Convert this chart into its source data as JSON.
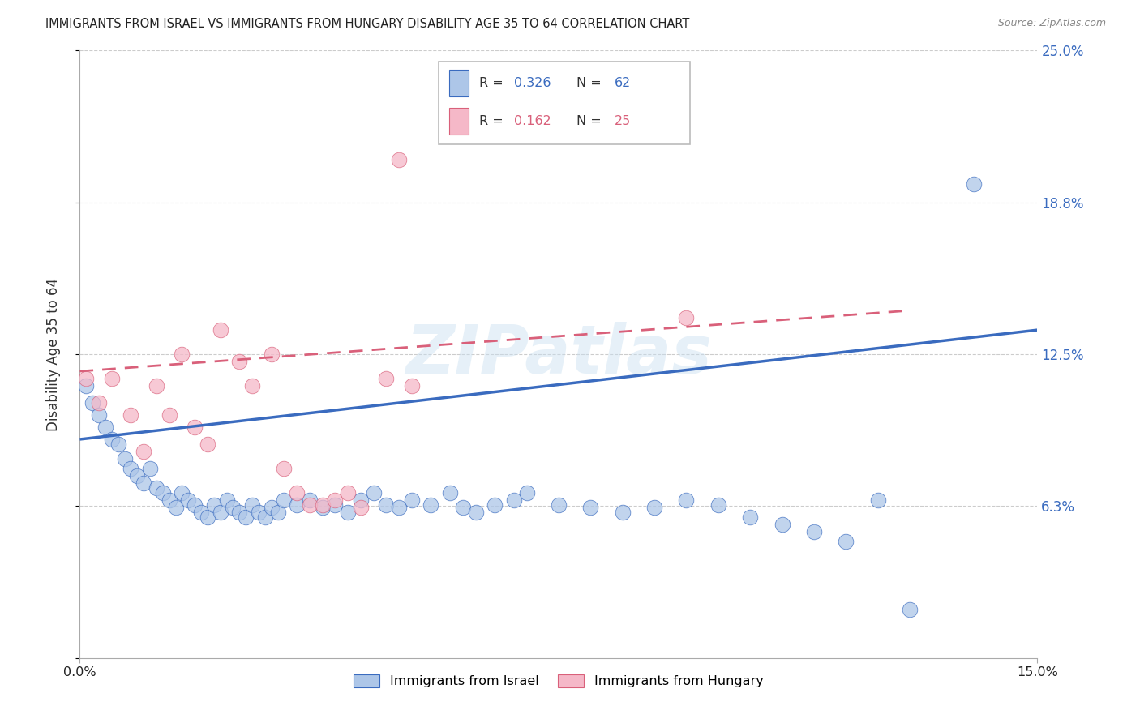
{
  "title": "IMMIGRANTS FROM ISRAEL VS IMMIGRANTS FROM HUNGARY DISABILITY AGE 35 TO 64 CORRELATION CHART",
  "source": "Source: ZipAtlas.com",
  "ylabel": "Disability Age 35 to 64",
  "xmin": 0.0,
  "xmax": 0.15,
  "ymin": 0.0,
  "ymax": 0.25,
  "ytick_vals": [
    0.0,
    0.0625,
    0.125,
    0.1875,
    0.25
  ],
  "ytick_labels": [
    "",
    "6.3%",
    "12.5%",
    "18.8%",
    "25.0%"
  ],
  "xtick_vals": [
    0.0,
    0.15
  ],
  "xtick_labels": [
    "0.0%",
    "15.0%"
  ],
  "legend_r_israel": "0.326",
  "legend_n_israel": "62",
  "legend_r_hungary": "0.162",
  "legend_n_hungary": "25",
  "israel_color": "#adc6e8",
  "hungary_color": "#f5b8c8",
  "trendline_israel_color": "#3a6bbf",
  "trendline_hungary_color": "#d9607a",
  "watermark": "ZIPatlas",
  "israel_points_x": [
    0.001,
    0.002,
    0.003,
    0.004,
    0.005,
    0.006,
    0.007,
    0.008,
    0.009,
    0.01,
    0.011,
    0.012,
    0.013,
    0.014,
    0.015,
    0.016,
    0.017,
    0.018,
    0.019,
    0.02,
    0.021,
    0.022,
    0.023,
    0.024,
    0.025,
    0.026,
    0.027,
    0.028,
    0.029,
    0.03,
    0.031,
    0.032,
    0.034,
    0.036,
    0.038,
    0.04,
    0.042,
    0.044,
    0.046,
    0.048,
    0.05,
    0.052,
    0.055,
    0.058,
    0.06,
    0.062,
    0.065,
    0.068,
    0.07,
    0.075,
    0.08,
    0.085,
    0.09,
    0.095,
    0.1,
    0.105,
    0.11,
    0.115,
    0.12,
    0.125,
    0.13,
    0.14
  ],
  "israel_points_y": [
    0.112,
    0.105,
    0.1,
    0.095,
    0.09,
    0.088,
    0.082,
    0.078,
    0.075,
    0.072,
    0.078,
    0.07,
    0.068,
    0.065,
    0.062,
    0.068,
    0.065,
    0.063,
    0.06,
    0.058,
    0.063,
    0.06,
    0.065,
    0.062,
    0.06,
    0.058,
    0.063,
    0.06,
    0.058,
    0.062,
    0.06,
    0.065,
    0.063,
    0.065,
    0.062,
    0.063,
    0.06,
    0.065,
    0.068,
    0.063,
    0.062,
    0.065,
    0.063,
    0.068,
    0.062,
    0.06,
    0.063,
    0.065,
    0.068,
    0.063,
    0.062,
    0.06,
    0.062,
    0.065,
    0.063,
    0.058,
    0.055,
    0.052,
    0.048,
    0.065,
    0.02,
    0.195
  ],
  "hungary_points_x": [
    0.001,
    0.003,
    0.005,
    0.008,
    0.01,
    0.012,
    0.014,
    0.016,
    0.018,
    0.02,
    0.022,
    0.025,
    0.027,
    0.03,
    0.032,
    0.034,
    0.036,
    0.038,
    0.04,
    0.042,
    0.044,
    0.048,
    0.052,
    0.095,
    0.05
  ],
  "hungary_points_y": [
    0.115,
    0.105,
    0.115,
    0.1,
    0.085,
    0.112,
    0.1,
    0.125,
    0.095,
    0.088,
    0.135,
    0.122,
    0.112,
    0.125,
    0.078,
    0.068,
    0.063,
    0.063,
    0.065,
    0.068,
    0.062,
    0.115,
    0.112,
    0.14,
    0.205
  ],
  "israel_trend_x0": 0.0,
  "israel_trend_y0": 0.09,
  "israel_trend_x1": 0.15,
  "israel_trend_y1": 0.135,
  "hungary_trend_x0": 0.0,
  "hungary_trend_y0": 0.118,
  "hungary_trend_x1": 0.13,
  "hungary_trend_y1": 0.143
}
